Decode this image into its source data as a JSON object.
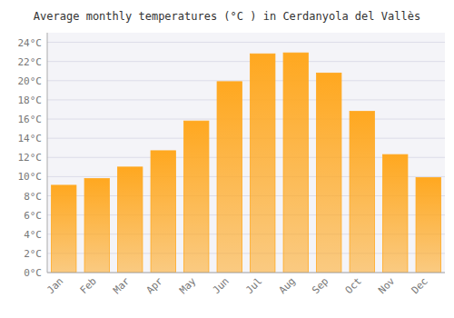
{
  "chart_data": {
    "type": "bar",
    "title": "Average monthly temperatures (°C ) in Cerdanyola del Vallès",
    "categories": [
      "Jan",
      "Feb",
      "Mar",
      "Apr",
      "May",
      "Jun",
      "Jul",
      "Aug",
      "Sep",
      "Oct",
      "Nov",
      "Dec"
    ],
    "values": [
      9.1,
      9.8,
      11.0,
      12.7,
      15.8,
      19.9,
      22.8,
      22.9,
      20.8,
      16.8,
      12.3,
      9.9
    ],
    "color": "#FFA820",
    "ylim": [
      0,
      25
    ],
    "yticks": [
      {
        "value": 0,
        "label": "0°C"
      },
      {
        "value": 2,
        "label": "2°C"
      },
      {
        "value": 4,
        "label": "4°C"
      },
      {
        "value": 6,
        "label": "6°C"
      },
      {
        "value": 8,
        "label": "8°C"
      },
      {
        "value": 10,
        "label": "10°C"
      },
      {
        "value": 12,
        "label": "12°C"
      },
      {
        "value": 14,
        "label": "14°C"
      },
      {
        "value": 16,
        "label": "16°C"
      },
      {
        "value": 18,
        "label": "18°C"
      },
      {
        "value": 20,
        "label": "20°C"
      },
      {
        "value": 22,
        "label": "22°C"
      },
      {
        "value": 24,
        "label": "24°C"
      }
    ],
    "grid": true
  }
}
